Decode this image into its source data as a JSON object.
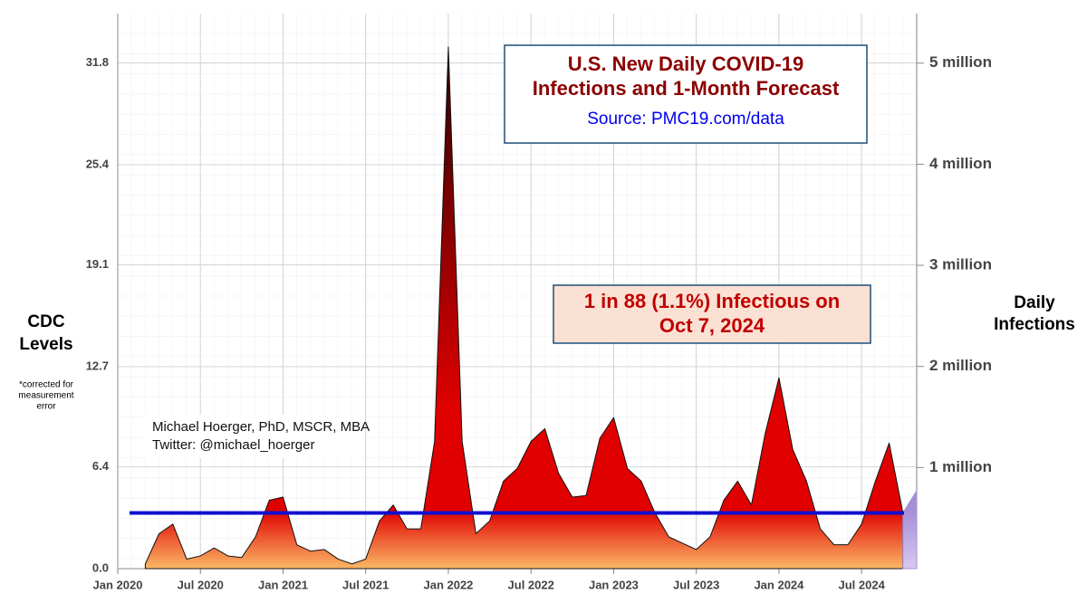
{
  "chart_data": {
    "type": "area",
    "title": [
      "U.S. New Daily COVID-19",
      "Infections and 1-Month Forecast"
    ],
    "subtitle": "Source: PMC19.com/data",
    "annotation": [
      "1 in 88 (1.1%) Infectious on",
      "Oct 7, 2024"
    ],
    "author": [
      "Michael Hoerger, PhD, MSCR, MBA",
      "Twitter: @michael_hoerger"
    ],
    "y_label": [
      "CDC",
      "Levels"
    ],
    "y_note": [
      "*corrected for",
      "measurement",
      "error"
    ],
    "y2_label": [
      "Daily",
      "Infections"
    ],
    "xlim": [
      "2020-01",
      "2024-11"
    ],
    "xticks": [
      {
        "value": "2020-01",
        "label": "Jan 2020"
      },
      {
        "value": "2020-07",
        "label": "Jul 2020"
      },
      {
        "value": "2021-01",
        "label": "Jan 2021"
      },
      {
        "value": "2021-07",
        "label": "Jul 2021"
      },
      {
        "value": "2022-01",
        "label": "Jan 2022"
      },
      {
        "value": "2022-07",
        "label": "Jul 2022"
      },
      {
        "value": "2023-01",
        "label": "Jan 2023"
      },
      {
        "value": "2023-07",
        "label": "Jul 2023"
      },
      {
        "value": "2024-01",
        "label": "Jan 2024"
      },
      {
        "value": "2024-07",
        "label": "Jul 2024"
      }
    ],
    "ylim": [
      0,
      34.9
    ],
    "yticks": [
      {
        "value": 0,
        "label": "0.0"
      },
      6.4,
      12.7,
      19.1,
      25.4,
      31.8
    ],
    "y2lim": [
      0,
      5490000
    ],
    "y2ticks": [
      {
        "value": 1000000,
        "label": "1 million"
      },
      {
        "value": 2000000,
        "label": "2 million"
      },
      {
        "value": 3000000,
        "label": "3 million"
      },
      {
        "value": 4000000,
        "label": "4 million"
      },
      {
        "value": 5000000,
        "label": "5 million"
      }
    ],
    "grid": true,
    "reference_line": {
      "value": 3.5,
      "color": "#1010d0"
    },
    "x": [
      "2020-03",
      "2020-04",
      "2020-05",
      "2020-06",
      "2020-07",
      "2020-08",
      "2020-09",
      "2020-10",
      "2020-11",
      "2020-12",
      "2021-01",
      "2021-02",
      "2021-03",
      "2021-04",
      "2021-05",
      "2021-06",
      "2021-07",
      "2021-08",
      "2021-09",
      "2021-10",
      "2021-11",
      "2021-12",
      "2022-01",
      "2022-02",
      "2022-03",
      "2022-04",
      "2022-05",
      "2022-06",
      "2022-07",
      "2022-08",
      "2022-09",
      "2022-10",
      "2022-11",
      "2022-12",
      "2023-01",
      "2023-02",
      "2023-03",
      "2023-04",
      "2023-05",
      "2023-06",
      "2023-07",
      "2023-08",
      "2023-09",
      "2023-10",
      "2023-11",
      "2023-12",
      "2024-01",
      "2024-02",
      "2024-03",
      "2024-04",
      "2024-05",
      "2024-06",
      "2024-07",
      "2024-08",
      "2024-09",
      "2024-10",
      "2024-11"
    ],
    "series": [
      {
        "color": "#e00000",
        "values": [
          0.3,
          2.2,
          2.8,
          0.6,
          0.8,
          1.3,
          0.8,
          0.7,
          2.0,
          4.3,
          4.5,
          1.5,
          1.1,
          1.2,
          0.6,
          0.3,
          0.6,
          3.0,
          4.0,
          2.5,
          2.5,
          8.0,
          32.8,
          8.0,
          2.2,
          3.0,
          5.5,
          6.3,
          8.0,
          8.8,
          6.0,
          4.5,
          4.6,
          8.2,
          9.5,
          6.3,
          5.5,
          3.5,
          2.0,
          1.6,
          1.2,
          2.0,
          4.3,
          5.5,
          4.0,
          8.5,
          12.0,
          7.5,
          5.5,
          2.5,
          1.5,
          1.5,
          2.8,
          5.5,
          7.9,
          3.5,
          null
        ]
      },
      {
        "color": "#a58fd6",
        "values": [
          null,
          null,
          null,
          null,
          null,
          null,
          null,
          null,
          null,
          null,
          null,
          null,
          null,
          null,
          null,
          null,
          null,
          null,
          null,
          null,
          null,
          null,
          null,
          null,
          null,
          null,
          null,
          null,
          null,
          null,
          null,
          null,
          null,
          null,
          null,
          null,
          null,
          null,
          null,
          null,
          null,
          null,
          null,
          null,
          null,
          null,
          null,
          null,
          null,
          null,
          null,
          null,
          null,
          null,
          null,
          3.5,
          4.9
        ]
      }
    ]
  }
}
